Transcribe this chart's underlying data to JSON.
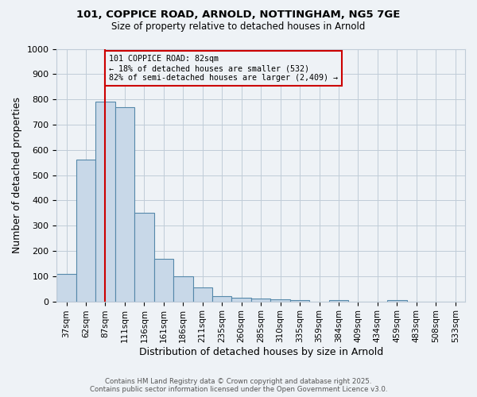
{
  "title1": "101, COPPICE ROAD, ARNOLD, NOTTINGHAM, NG5 7GE",
  "title2": "Size of property relative to detached houses in Arnold",
  "xlabel": "Distribution of detached houses by size in Arnold",
  "ylabel": "Number of detached properties",
  "categories": [
    "37sqm",
    "62sqm",
    "87sqm",
    "111sqm",
    "136sqm",
    "161sqm",
    "186sqm",
    "211sqm",
    "235sqm",
    "260sqm",
    "285sqm",
    "310sqm",
    "335sqm",
    "359sqm",
    "384sqm",
    "409sqm",
    "434sqm",
    "459sqm",
    "483sqm",
    "508sqm",
    "533sqm"
  ],
  "bar_values": [
    110,
    560,
    790,
    770,
    350,
    170,
    100,
    55,
    20,
    15,
    10,
    8,
    5,
    0,
    5,
    0,
    0,
    5,
    0,
    0,
    0
  ],
  "bar_color": "#c8d8e8",
  "bar_edge_color": "#5588aa",
  "vline_x_index": 2,
  "vline_color": "#cc0000",
  "annotation_line1": "101 COPPICE ROAD: 82sqm",
  "annotation_line2": "← 18% of detached houses are smaller (532)",
  "annotation_line3": "82% of semi-detached houses are larger (2,409) →",
  "annotation_box_color": "#cc0000",
  "ylim": [
    0,
    1000
  ],
  "yticks": [
    0,
    100,
    200,
    300,
    400,
    500,
    600,
    700,
    800,
    900,
    1000
  ],
  "footer1": "Contains HM Land Registry data © Crown copyright and database right 2025.",
  "footer2": "Contains public sector information licensed under the Open Government Licence v3.0.",
  "bg_color": "#eef2f6",
  "grid_color": "#c0ccd8"
}
